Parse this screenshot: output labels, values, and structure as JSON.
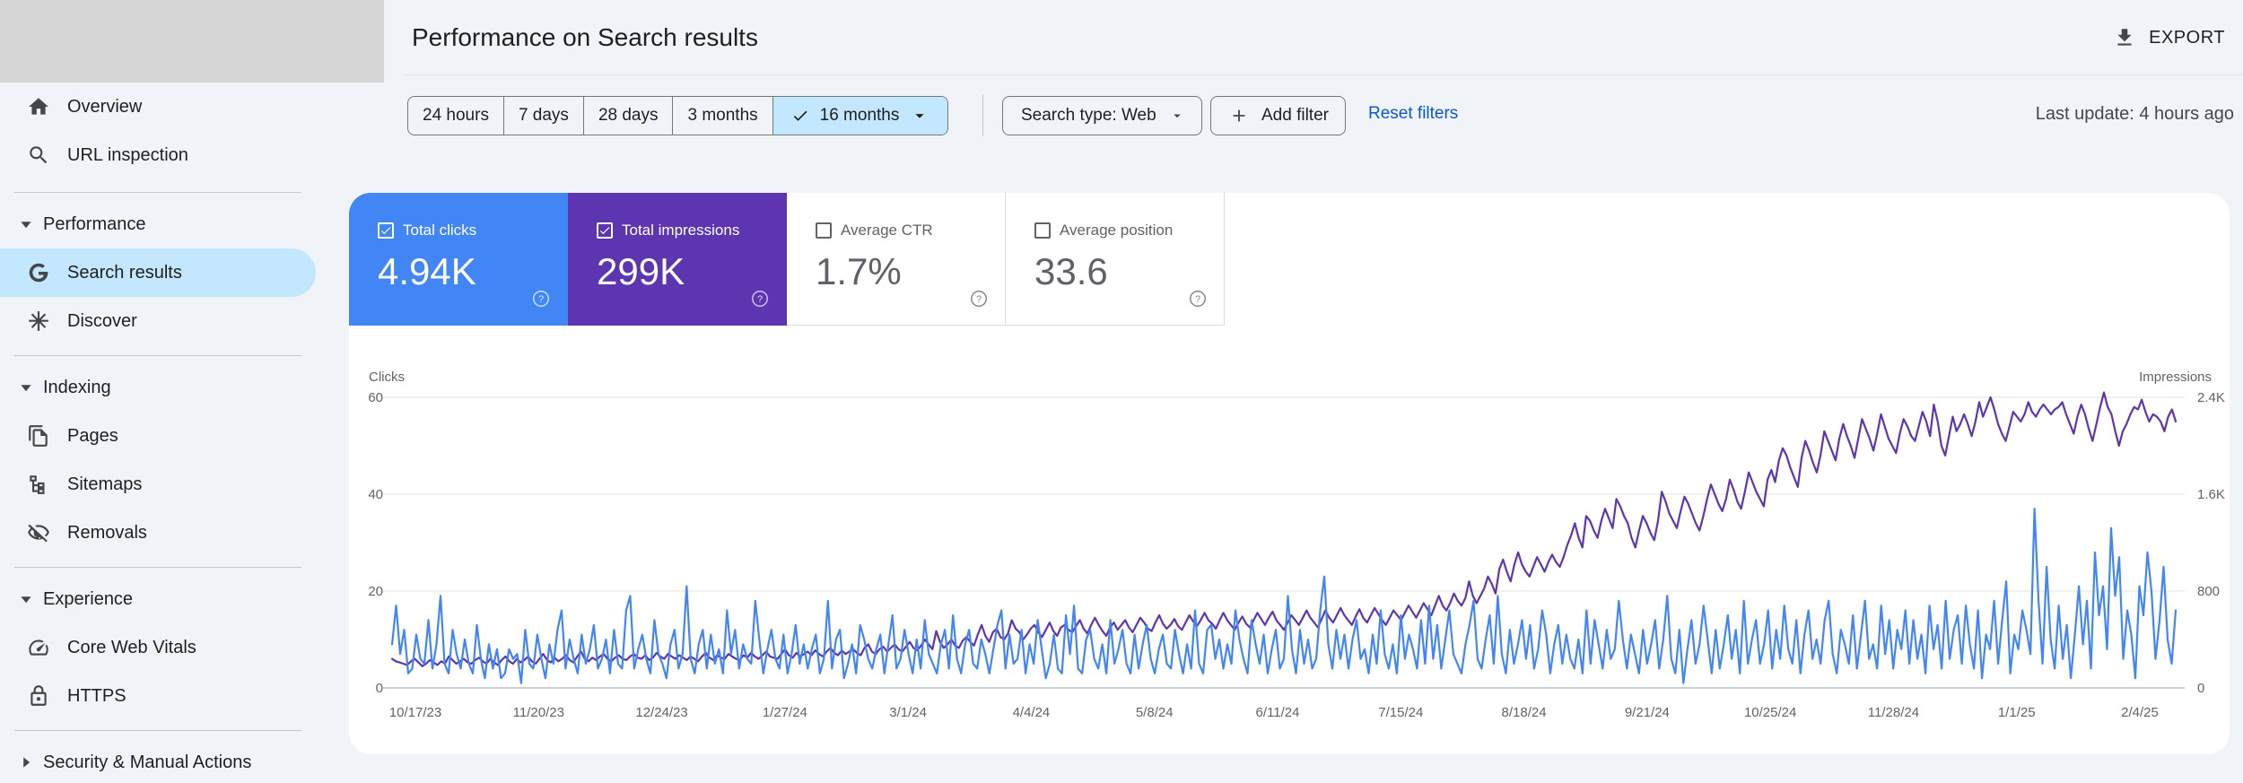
{
  "header": {
    "title": "Performance on Search results",
    "export_label": "EXPORT"
  },
  "sidebar": {
    "items": [
      {
        "label": "Overview",
        "icon": "home-icon"
      },
      {
        "label": "URL inspection",
        "icon": "search-icon"
      }
    ],
    "performance": {
      "section_label": "Performance",
      "items": [
        {
          "label": "Search results",
          "icon": "google-g-icon",
          "active": true
        },
        {
          "label": "Discover",
          "icon": "asterisk-icon"
        }
      ]
    },
    "indexing": {
      "section_label": "Indexing",
      "items": [
        {
          "label": "Pages",
          "icon": "pages-icon"
        },
        {
          "label": "Sitemaps",
          "icon": "sitemap-icon"
        },
        {
          "label": "Removals",
          "icon": "visibility-off-icon"
        }
      ]
    },
    "experience": {
      "section_label": "Experience",
      "items": [
        {
          "label": "Core Web Vitals",
          "icon": "speed-icon"
        },
        {
          "label": "HTTPS",
          "icon": "lock-icon"
        }
      ]
    },
    "security": {
      "section_label": "Security & Manual Actions"
    }
  },
  "filters": {
    "date_ranges": [
      "24 hours",
      "7 days",
      "28 days",
      "3 months",
      "16 months"
    ],
    "selected_range": "16 months",
    "search_type": "Search type: Web",
    "add_filter": "Add filter",
    "reset": "Reset filters",
    "last_update": "Last update: 4 hours ago"
  },
  "metrics": [
    {
      "label": "Total clicks",
      "value": "4.94K",
      "checked": true,
      "color": "#4285f4"
    },
    {
      "label": "Total impressions",
      "value": "299K",
      "checked": true,
      "color": "#5e35b1"
    },
    {
      "label": "Average CTR",
      "value": "1.7%",
      "checked": false
    },
    {
      "label": "Average position",
      "value": "33.6",
      "checked": false
    }
  ],
  "chart_data": {
    "type": "line",
    "left_axis_label": "Clicks",
    "right_axis_label": "Impressions",
    "left_ticks": [
      "0",
      "20",
      "40",
      "60"
    ],
    "right_ticks": [
      "0",
      "800",
      "1.6K",
      "2.4K"
    ],
    "left_ylim": [
      0,
      60
    ],
    "right_ylim": [
      0,
      2400
    ],
    "x_tick_labels": [
      "10/17/23",
      "11/20/23",
      "12/24/23",
      "1/27/24",
      "3/1/24",
      "4/4/24",
      "5/8/24",
      "6/11/24",
      "7/15/24",
      "8/18/24",
      "9/21/24",
      "10/25/24",
      "11/28/24",
      "1/1/25",
      "2/4/25"
    ],
    "grid": true,
    "series": [
      {
        "name": "Clicks",
        "axis": "left",
        "color": "#4285f4",
        "values": [
          9,
          17,
          7,
          12,
          3,
          4,
          11,
          6,
          5,
          14,
          4,
          9,
          19,
          5,
          3,
          12,
          7,
          4,
          10,
          5,
          3,
          13,
          6,
          2,
          9,
          4,
          8,
          2,
          3,
          8,
          6,
          7,
          1,
          12,
          5,
          4,
          11,
          6,
          2,
          9,
          5,
          12,
          16,
          4,
          10,
          6,
          3,
          11,
          5,
          8,
          13,
          4,
          6,
          10,
          3,
          12,
          5,
          4,
          16,
          19,
          4,
          8,
          11,
          6,
          3,
          14,
          7,
          5,
          2,
          9,
          12,
          4,
          7,
          21,
          6,
          3,
          9,
          12,
          4,
          11,
          5,
          8,
          3,
          16,
          7,
          12,
          4,
          9,
          6,
          5,
          18,
          10,
          3,
          8,
          12,
          6,
          4,
          11,
          3,
          7,
          13,
          5,
          9,
          4,
          8,
          11,
          3,
          6,
          18,
          4,
          10,
          12,
          2,
          5,
          9,
          3,
          13,
          10,
          6,
          4,
          8,
          11,
          3,
          9,
          15,
          4,
          6,
          12,
          7,
          3,
          10,
          4,
          14,
          7,
          5,
          3,
          9,
          12,
          4,
          15,
          6,
          3,
          9,
          12,
          5,
          4,
          10,
          7,
          3,
          8,
          13,
          16,
          4,
          11,
          5,
          6,
          12,
          3,
          9,
          5,
          14,
          8,
          2,
          5,
          11,
          4,
          3,
          15,
          7,
          17,
          4,
          3,
          10,
          12,
          6,
          4,
          9,
          3,
          14,
          5,
          8,
          12,
          5,
          3,
          11,
          4,
          9,
          13,
          6,
          3,
          8,
          11,
          5,
          4,
          12,
          7,
          3,
          9,
          4,
          16,
          5,
          3,
          12,
          13,
          6,
          10,
          4,
          9,
          5,
          16,
          10,
          6,
          3,
          14,
          9,
          5,
          11,
          3,
          8,
          12,
          4,
          6,
          19,
          8,
          3,
          12,
          5,
          10,
          4,
          6,
          16,
          23,
          9,
          4,
          12,
          6,
          11,
          4,
          10,
          14,
          6,
          8,
          3,
          11,
          5,
          16,
          7,
          4,
          9,
          3,
          15,
          6,
          11,
          8,
          4,
          14,
          5,
          17,
          6,
          13,
          4,
          10,
          16,
          7,
          5,
          3,
          9,
          13,
          18,
          6,
          4,
          10,
          15,
          5,
          19,
          7,
          3,
          12,
          5,
          9,
          14,
          6,
          13,
          4,
          8,
          16,
          11,
          3,
          9,
          13,
          5,
          11,
          6,
          4,
          10,
          3,
          16,
          5,
          14,
          9,
          4,
          12,
          6,
          8,
          18,
          10,
          4,
          11,
          7,
          3,
          12,
          5,
          9,
          14,
          4,
          10,
          19,
          6,
          3,
          12,
          1,
          8,
          14,
          5,
          9,
          17,
          10,
          3,
          12,
          4,
          9,
          15,
          6,
          12,
          3,
          18,
          5,
          10,
          14,
          5,
          9,
          16,
          4,
          12,
          6,
          17,
          8,
          5,
          14,
          3,
          11,
          16,
          6,
          10,
          5,
          14,
          18,
          7,
          3,
          12,
          9,
          5,
          15,
          4,
          11,
          18,
          6,
          9,
          4,
          17,
          7,
          14,
          4,
          12,
          8,
          16,
          5,
          14,
          6,
          11,
          3,
          17,
          8,
          13,
          4,
          18,
          6,
          12,
          15,
          5,
          17,
          9,
          4,
          16,
          2,
          11,
          8,
          18,
          5,
          14,
          22,
          3,
          11,
          8,
          16,
          12,
          7,
          37,
          18,
          5,
          25,
          10,
          4,
          17,
          6,
          13,
          2,
          11,
          21,
          9,
          18,
          4,
          28,
          15,
          21,
          8,
          33,
          19,
          27,
          6,
          16,
          11,
          2,
          21,
          15,
          28,
          20,
          6,
          14,
          25,
          10,
          5,
          16
        ]
      },
      {
        "name": "Impressions",
        "axis": "right",
        "color": "#5e35b1",
        "values": [
          240,
          220,
          210,
          200,
          190,
          220,
          240,
          210,
          180,
          200,
          230,
          210,
          190,
          220,
          200,
          260,
          230,
          200,
          220,
          240,
          210,
          200,
          230,
          250,
          220,
          200,
          240,
          210,
          190,
          230,
          260,
          220,
          200,
          240,
          210,
          230,
          260,
          220,
          200,
          240,
          280,
          230,
          210,
          250,
          220,
          240,
          270,
          230,
          210,
          260,
          300,
          240,
          220,
          250,
          230,
          260,
          280,
          240,
          220,
          250,
          270,
          240,
          230,
          260,
          280,
          250,
          240,
          270,
          230,
          250,
          290,
          260,
          240,
          280,
          260,
          240,
          270,
          250,
          230,
          260,
          240,
          220,
          260,
          290,
          250,
          230,
          270,
          250,
          240,
          280,
          260,
          240,
          230,
          270,
          250,
          290,
          260,
          240,
          270,
          300,
          260,
          250,
          240,
          280,
          320,
          270,
          250,
          290,
          260,
          280,
          300,
          270,
          310,
          280,
          260,
          300,
          330,
          290,
          270,
          310,
          280,
          300,
          320,
          290,
          270,
          330,
          360,
          300,
          280,
          320,
          340,
          300,
          330,
          360,
          320,
          300,
          340,
          380,
          330,
          310,
          350,
          400,
          360,
          320,
          470,
          380,
          330,
          360,
          400,
          350,
          330,
          390,
          420,
          380,
          350,
          440,
          520,
          430,
          380,
          460,
          490,
          420,
          400,
          450,
          560,
          490,
          460,
          400,
          440,
          490,
          520,
          460,
          420,
          480,
          540,
          470,
          430,
          500,
          520,
          480,
          460,
          510,
          560,
          490,
          450,
          520,
          580,
          520,
          470,
          430,
          500,
          540,
          480,
          520,
          560,
          500,
          460,
          520,
          580,
          540,
          490,
          470,
          540,
          600,
          530,
          490,
          520,
          570,
          510,
          480,
          540,
          600,
          550,
          510,
          560,
          620,
          560,
          530,
          490,
          560,
          620,
          560,
          520,
          480,
          540,
          590,
          530,
          500,
          560,
          620,
          570,
          520,
          580,
          630,
          560,
          520,
          480,
          540,
          600,
          560,
          520,
          580,
          640,
          580,
          540,
          500,
          570,
          640,
          580,
          540,
          600,
          660,
          600,
          560,
          520,
          590,
          650,
          580,
          540,
          600,
          660,
          610,
          560,
          520,
          580,
          640,
          600,
          560,
          620,
          680,
          630,
          580,
          640,
          700,
          650,
          600,
          680,
          760,
          680,
          640,
          700,
          780,
          720,
          680,
          740,
          880,
          760,
          700,
          760,
          820,
          920,
          860,
          780,
          980,
          1060,
          960,
          880,
          1020,
          1120,
          1020,
          960,
          920,
          1000,
          1080,
          1020,
          960,
          1040,
          1100,
          1040,
          1000,
          1080,
          1180,
          1260,
          1360,
          1240,
          1160,
          1420,
          1380,
          1300,
          1240,
          1380,
          1480,
          1400,
          1320,
          1560,
          1500,
          1420,
          1360,
          1240,
          1160,
          1300,
          1420,
          1360,
          1280,
          1220,
          1380,
          1620,
          1540,
          1440,
          1380,
          1320,
          1460,
          1580,
          1520,
          1440,
          1360,
          1300,
          1420,
          1560,
          1680,
          1600,
          1520,
          1460,
          1560,
          1720,
          1640,
          1540,
          1480,
          1620,
          1780,
          1700,
          1620,
          1560,
          1500,
          1720,
          1800,
          1700,
          1880,
          1980,
          1920,
          1820,
          1740,
          1660,
          1900,
          2040,
          1960,
          1860,
          1780,
          1920,
          2120,
          2040,
          1960,
          1880,
          2060,
          2180,
          2080,
          2000,
          1900,
          2060,
          2220,
          2140,
          2060,
          1960,
          2100,
          2260,
          2160,
          2060,
          2000,
          1940,
          2100,
          2220,
          2160,
          2080,
          2040,
          2160,
          2280,
          2200,
          2080,
          2340,
          2200,
          2000,
          1920,
          2080,
          2240,
          2120,
          2180,
          2260,
          2180,
          2080,
          2200,
          2360,
          2240,
          2320,
          2400,
          2300,
          2180,
          2100,
          2040,
          2160,
          2280,
          2240,
          2200,
          2260,
          2360,
          2280,
          2240,
          2300,
          2340,
          2300,
          2260,
          2300,
          2320,
          2360,
          2260,
          2180,
          2100,
          2240,
          2340,
          2260,
          2140,
          2040,
          2180,
          2320,
          2440,
          2320,
          2260,
          2120,
          2000,
          2120,
          2180,
          2260,
          2320,
          2300,
          2380,
          2280,
          2200,
          2260,
          2240,
          2200,
          2120,
          2240,
          2300,
          2200
        ]
      }
    ]
  }
}
